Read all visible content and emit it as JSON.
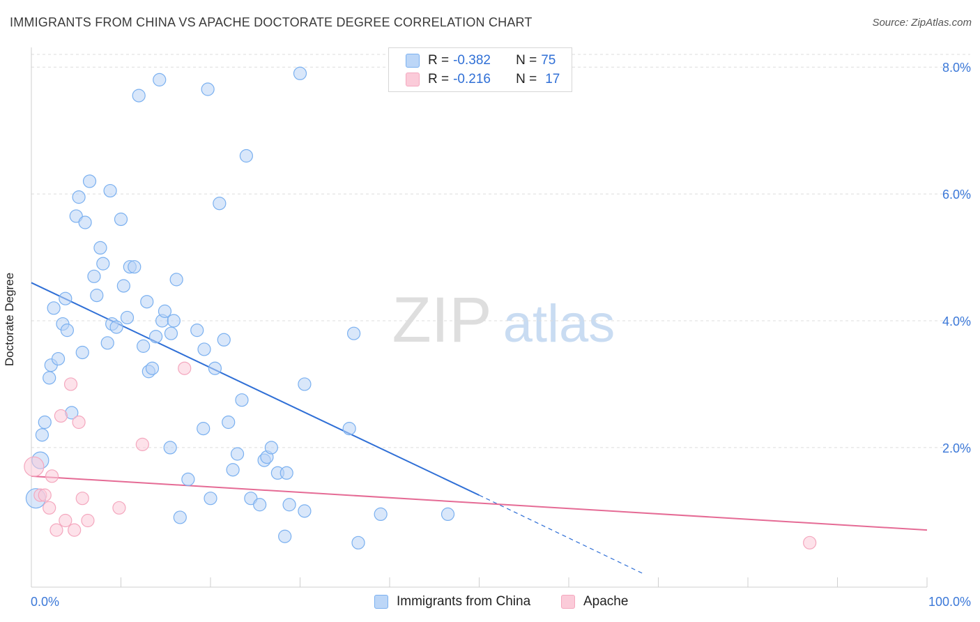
{
  "header": {
    "title": "IMMIGRANTS FROM CHINA VS APACHE DOCTORATE DEGREE CORRELATION CHART",
    "source": "Source: ZipAtlas.com"
  },
  "legend": {
    "rows": [
      {
        "r_label": "R = ",
        "r_value": "-0.382",
        "n_label": "N = ",
        "n_value": "75"
      },
      {
        "r_label": "R = ",
        "r_value": "-0.216",
        "n_label": "N = ",
        "n_value": "17"
      }
    ]
  },
  "watermark": {
    "zip": "ZIP",
    "atlas": "atlas"
  },
  "chart_data": {
    "type": "scatter",
    "title": "IMMIGRANTS FROM CHINA VS APACHE DOCTORATE DEGREE CORRELATION CHART",
    "xlabel": "",
    "ylabel": "Doctorate Degree",
    "xlim": [
      0,
      100
    ],
    "ylim": [
      -0.2,
      8.2
    ],
    "x_tick_labels": [
      "0.0%",
      "100.0%"
    ],
    "y_ticks": [
      2.0,
      4.0,
      6.0,
      8.0
    ],
    "y_tick_labels": [
      "2.0%",
      "4.0%",
      "6.0%",
      "8.0%"
    ],
    "grid": true,
    "legend_position": "top-center",
    "colors": {
      "china": "#7ab0f0",
      "china_line": "#2f6fd6",
      "apache": "#f4a7be",
      "apache_line": "#e56b95",
      "tick_label": "#3b78d8"
    },
    "series": [
      {
        "name": "Immigrants from China",
        "r": -0.382,
        "n": 75,
        "points": [
          [
            0.5,
            1.2
          ],
          [
            1.0,
            1.8
          ],
          [
            1.2,
            2.2
          ],
          [
            1.5,
            2.4
          ],
          [
            2.0,
            3.1
          ],
          [
            2.2,
            3.3
          ],
          [
            2.5,
            4.2
          ],
          [
            3.0,
            3.4
          ],
          [
            3.5,
            3.95
          ],
          [
            3.8,
            4.35
          ],
          [
            4.0,
            3.85
          ],
          [
            4.5,
            2.55
          ],
          [
            5.0,
            5.65
          ],
          [
            5.3,
            5.95
          ],
          [
            5.7,
            3.5
          ],
          [
            6.0,
            5.55
          ],
          [
            6.5,
            6.2
          ],
          [
            7.0,
            4.7
          ],
          [
            7.3,
            4.4
          ],
          [
            7.7,
            5.15
          ],
          [
            8.0,
            4.9
          ],
          [
            8.5,
            3.65
          ],
          [
            8.8,
            6.05
          ],
          [
            9.0,
            3.95
          ],
          [
            9.5,
            3.9
          ],
          [
            10.0,
            5.6
          ],
          [
            10.3,
            4.55
          ],
          [
            10.7,
            4.05
          ],
          [
            11.0,
            4.85
          ],
          [
            11.5,
            4.85
          ],
          [
            12.0,
            7.55
          ],
          [
            12.5,
            3.6
          ],
          [
            12.9,
            4.3
          ],
          [
            13.1,
            3.2
          ],
          [
            13.5,
            3.25
          ],
          [
            13.9,
            3.75
          ],
          [
            14.3,
            7.8
          ],
          [
            14.6,
            4.0
          ],
          [
            14.9,
            4.15
          ],
          [
            15.6,
            3.8
          ],
          [
            15.9,
            4.0
          ],
          [
            16.2,
            4.65
          ],
          [
            16.6,
            0.9
          ],
          [
            15.5,
            2.0
          ],
          [
            17.5,
            1.5
          ],
          [
            18.5,
            3.85
          ],
          [
            19.2,
            2.3
          ],
          [
            19.3,
            3.55
          ],
          [
            19.7,
            7.65
          ],
          [
            20.0,
            1.2
          ],
          [
            20.5,
            3.25
          ],
          [
            21.0,
            5.85
          ],
          [
            21.5,
            3.7
          ],
          [
            22.0,
            2.4
          ],
          [
            22.5,
            1.65
          ],
          [
            23.0,
            1.9
          ],
          [
            23.5,
            2.75
          ],
          [
            24.0,
            6.6
          ],
          [
            24.5,
            1.2
          ],
          [
            25.5,
            1.1
          ],
          [
            26.0,
            1.8
          ],
          [
            26.3,
            1.85
          ],
          [
            26.8,
            2.0
          ],
          [
            27.5,
            1.6
          ],
          [
            28.5,
            1.6
          ],
          [
            28.3,
            0.6
          ],
          [
            28.8,
            1.1
          ],
          [
            30.5,
            1.0
          ],
          [
            30.0,
            7.9
          ],
          [
            30.5,
            3.0
          ],
          [
            35.5,
            2.3
          ],
          [
            36.0,
            3.8
          ],
          [
            36.5,
            0.5
          ],
          [
            39.0,
            0.95
          ],
          [
            46.5,
            0.95
          ]
        ],
        "trend": {
          "x": [
            0,
            50
          ],
          "y": [
            4.6,
            1.25
          ],
          "dashed_to": [
            68.5,
            0.0
          ]
        }
      },
      {
        "name": "Apache",
        "r": -0.216,
        "n": 17,
        "points": [
          [
            0.3,
            1.7
          ],
          [
            1.0,
            1.25
          ],
          [
            1.5,
            1.25
          ],
          [
            2.0,
            1.05
          ],
          [
            2.3,
            1.55
          ],
          [
            2.8,
            0.7
          ],
          [
            3.3,
            2.5
          ],
          [
            3.8,
            0.85
          ],
          [
            4.4,
            3.0
          ],
          [
            4.8,
            0.7
          ],
          [
            5.3,
            2.4
          ],
          [
            5.7,
            1.2
          ],
          [
            6.3,
            0.85
          ],
          [
            9.8,
            1.05
          ],
          [
            12.4,
            2.05
          ],
          [
            17.1,
            3.25
          ],
          [
            86.9,
            0.5
          ]
        ],
        "trend": {
          "x": [
            0,
            100
          ],
          "y": [
            1.55,
            0.7
          ]
        }
      }
    ]
  },
  "bottom_legend": {
    "items": [
      {
        "label": "Immigrants from China"
      },
      {
        "label": "Apache"
      }
    ]
  }
}
